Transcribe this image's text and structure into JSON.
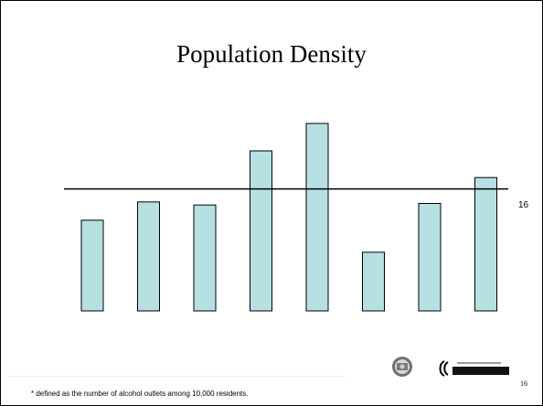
{
  "slide": {
    "title": "Population Density",
    "footnote": "* defined as the number of alcohol outlets among 10,000 residents.",
    "page_number": "16",
    "logo_text": "COUNTY OF LOS ANGELES Public Health"
  },
  "chart_data": {
    "type": "bar",
    "title": "Population Density",
    "xlabel": "",
    "ylabel": "",
    "ylim": [
      0,
      30
    ],
    "reference_line": {
      "value": 16,
      "label": "16"
    },
    "values": [
      11.9,
      14.3,
      13.9,
      21.0,
      24.6,
      7.7,
      14.1,
      17.5
    ],
    "bar_color": "#b7e0e3",
    "bar_edge": "#000000",
    "legend": "none",
    "grid": false
  }
}
